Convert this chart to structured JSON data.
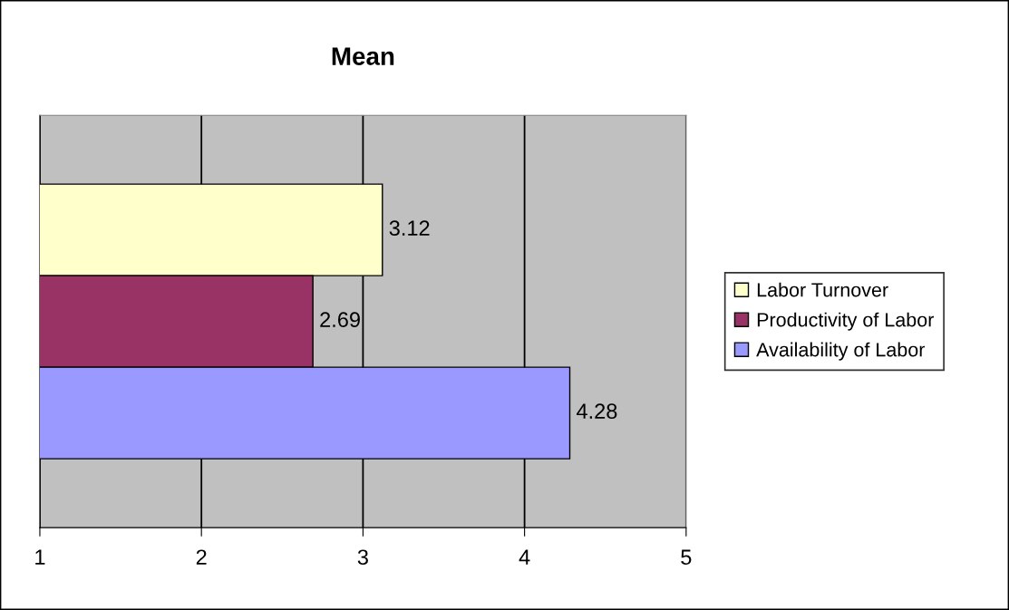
{
  "chart_data": {
    "type": "bar",
    "orientation": "horizontal",
    "title": "Mean",
    "categories": [
      null
    ],
    "series": [
      {
        "name": "Labor Turnover",
        "color": "#ffffcc",
        "values": [
          3.12
        ]
      },
      {
        "name": "Productivity of Labor",
        "color": "#993366",
        "values": [
          2.69
        ]
      },
      {
        "name": "Availability of Labor",
        "color": "#9999ff",
        "values": [
          4.28
        ]
      }
    ],
    "xlim": [
      1,
      5
    ],
    "xticks": [
      1,
      2,
      3,
      4,
      5
    ],
    "grid": "x",
    "legend": "right",
    "data_labels": true
  }
}
